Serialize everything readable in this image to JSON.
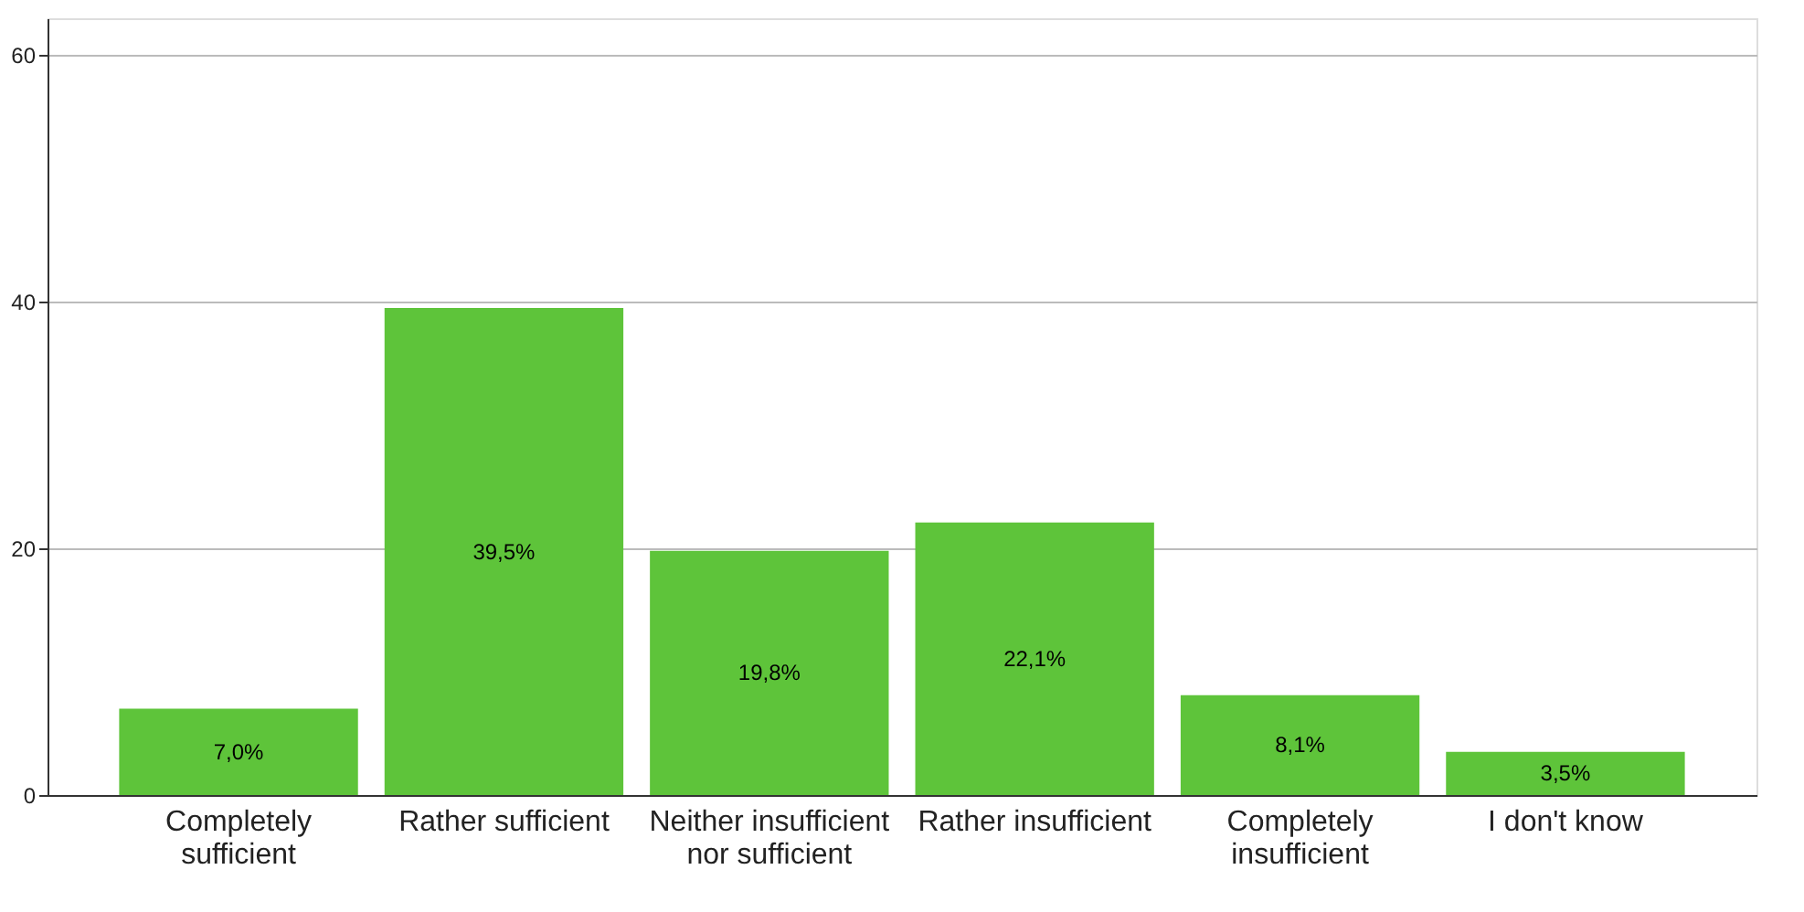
{
  "chart_data": {
    "type": "bar",
    "categories": [
      "Completely sufficient",
      "Rather sufficient",
      "Neither insufficient nor sufficient",
      "Rather insufficient",
      "Completely insufficient",
      "I don't know"
    ],
    "values": [
      7.0,
      39.5,
      19.8,
      22.1,
      8.1,
      3.5
    ],
    "value_labels": [
      "7,0%",
      "39,5%",
      "19,8%",
      "22,1%",
      "8,1%",
      "3,5%"
    ],
    "color": "#5ec43a",
    "ylim": [
      0,
      63
    ],
    "yticks": [
      0,
      20,
      40,
      60
    ],
    "grid": "y"
  }
}
